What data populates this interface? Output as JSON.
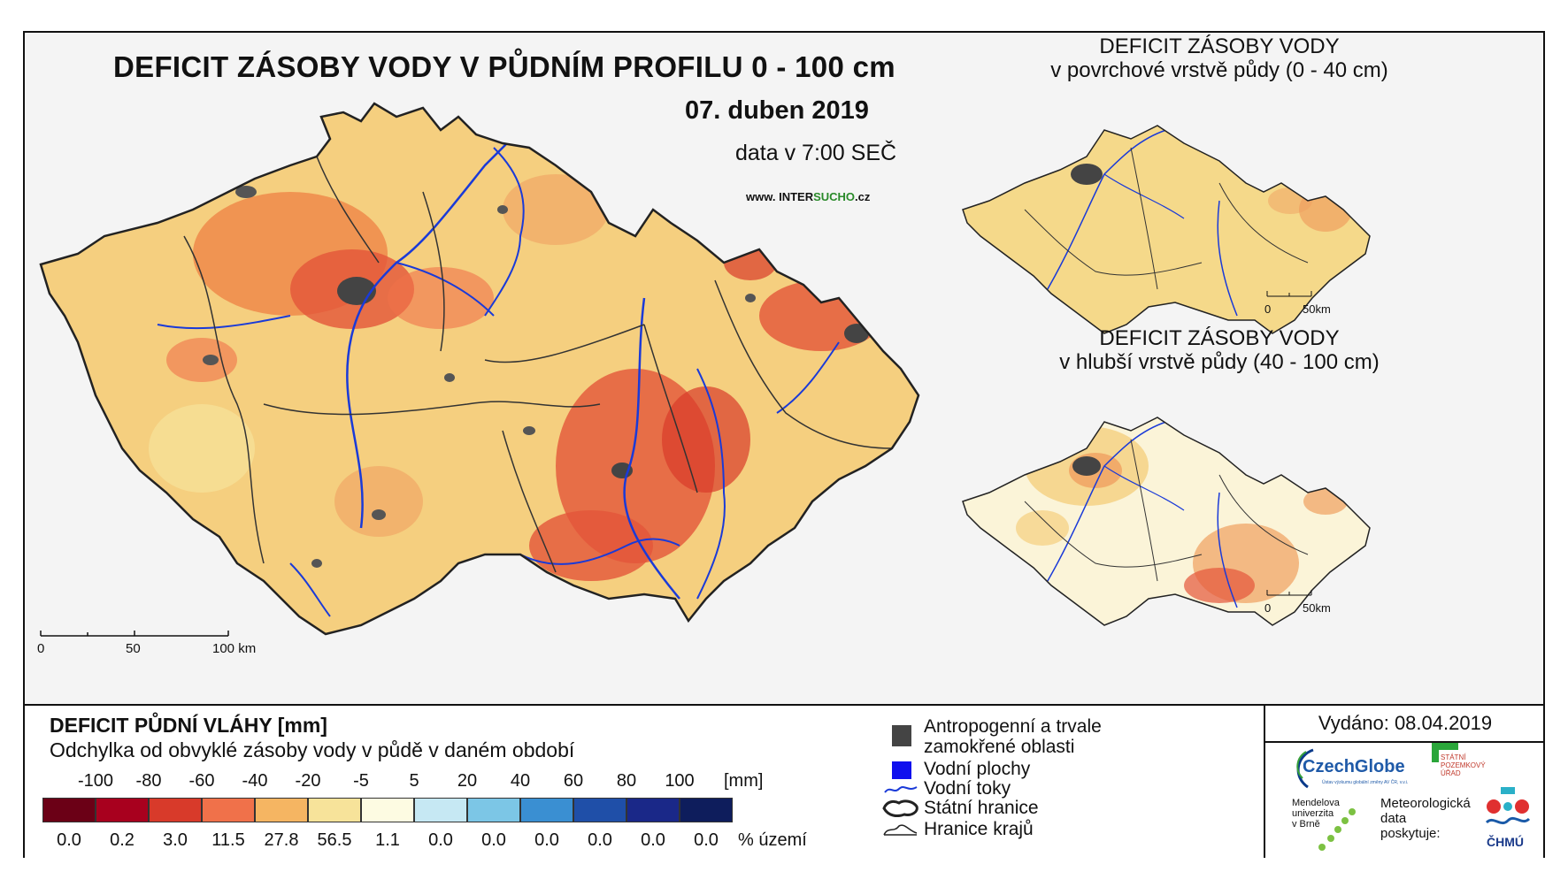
{
  "title": "DEFICIT ZÁSOBY VODY V PŮDNÍM PROFILU 0 - 100 cm",
  "date": "07. duben 2019",
  "time": "data v 7:00 SEČ",
  "website": {
    "prefix": "www. INTER",
    "highlight": "SUCHO",
    "suffix": ".cz"
  },
  "inset_top": {
    "title_line1": "DEFICIT ZÁSOBY VODY",
    "title_line2": "v povrchové vrstvě půdy (0 - 40 cm)",
    "scale_0": "0",
    "scale_50": "50km"
  },
  "inset_bottom": {
    "title_line1": "DEFICIT ZÁSOBY VODY",
    "title_line2": "v hlubší vrstvě půdy (40 - 100 cm)",
    "scale_0": "0",
    "scale_50": "50km"
  },
  "main_scale": {
    "t0": "0",
    "t50": "50",
    "t100": "100 km"
  },
  "legend": {
    "title": "DEFICIT PŮDNÍ VLÁHY [mm]",
    "subtitle": "Odchylka od obvyklé zásoby vody v půdě v daném období",
    "ticks": [
      "-100",
      "-80",
      "-60",
      "-40",
      "-20",
      "-5",
      "5",
      "20",
      "40",
      "60",
      "80",
      "100"
    ],
    "unit": "[mm]",
    "colors": [
      "#6b0016",
      "#a8001e",
      "#d83a2a",
      "#f0714a",
      "#f5b562",
      "#f7e39a",
      "#fdfbe2",
      "#c6e8f3",
      "#7cc6e6",
      "#3a8fd2",
      "#1f4fa8",
      "#1a2888",
      "#0e1d5c"
    ],
    "percent": [
      "0.0",
      "0.2",
      "3.0",
      "11.5",
      "27.8",
      "56.5",
      "1.1",
      "0.0",
      "0.0",
      "0.0",
      "0.0",
      "0.0",
      "0.0"
    ],
    "percent_label": "% území"
  },
  "symbols": {
    "urban_line1": "Antropogenní a trvale",
    "urban_line2": "zamokřené oblasti",
    "water_bodies": "Vodní plochy",
    "rivers": "Vodní toky",
    "border": "Státní hranice",
    "regions": "Hranice krajů"
  },
  "issued": "Vydáno: 08.04.2019",
  "logos": {
    "czechglobe": "CzechGlobe",
    "czechglobe_sub": "Ústav výzkumu globální změny AV ČR, v.v.i.",
    "spu_line1": "STÁTNÍ",
    "spu_line2": "POZEMKOVÝ",
    "spu_line3": "ÚŘAD",
    "mendel_line1": "Mendelova",
    "mendel_line2": "univerzita",
    "mendel_line3": "v Brně",
    "meteo_line1": "Meteorologická",
    "meteo_line2": "data",
    "meteo_line3": "poskytuje:",
    "chmu": "ČHMÚ"
  }
}
